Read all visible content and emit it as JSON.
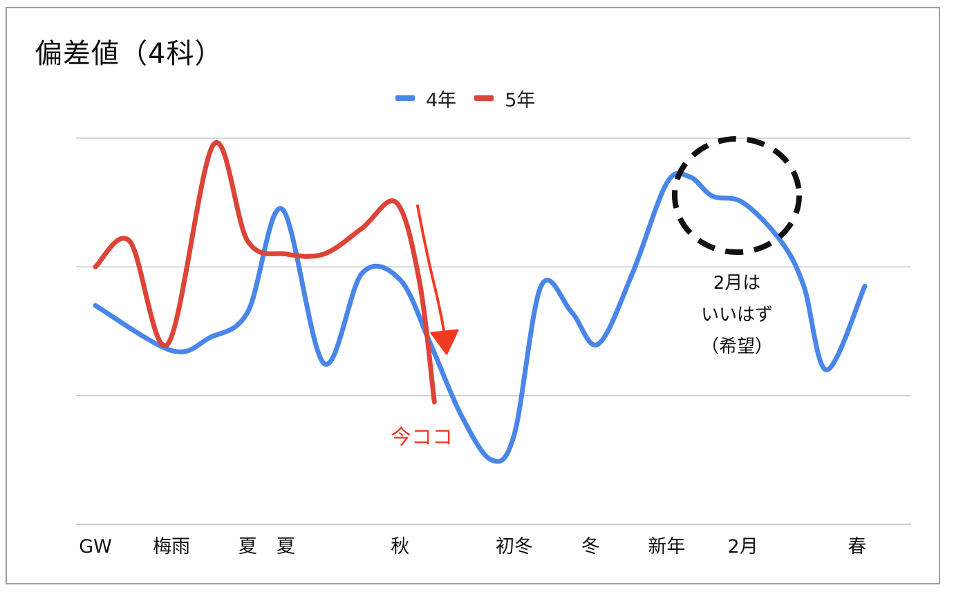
{
  "chart_data": {
    "type": "line",
    "title": "偏差値（4科）",
    "xlabel": "",
    "ylabel": "",
    "ylim": [
      0,
      30
    ],
    "grid": true,
    "legend": "top-center",
    "x_ticks": [
      {
        "x": 0,
        "label": "GW"
      },
      {
        "x": 1,
        "label": "梅雨"
      },
      {
        "x": 2,
        "label": "夏"
      },
      {
        "x": 2.5,
        "label": "夏"
      },
      {
        "x": 4,
        "label": "秋"
      },
      {
        "x": 5.5,
        "label": "初冬"
      },
      {
        "x": 6.5,
        "label": "冬"
      },
      {
        "x": 7.5,
        "label": "新年"
      },
      {
        "x": 8.5,
        "label": "2月"
      },
      {
        "x": 10,
        "label": "春"
      }
    ],
    "xlim": [
      0,
      10.5
    ],
    "series": [
      {
        "name": "4年",
        "color": "#4a86e8",
        "points": [
          [
            0,
            17
          ],
          [
            1,
            13.5
          ],
          [
            1.5,
            14.5
          ],
          [
            2,
            16.5
          ],
          [
            2.45,
            24.5
          ],
          [
            3,
            12.5
          ],
          [
            3.5,
            19.5
          ],
          [
            4,
            19
          ],
          [
            4.4,
            14
          ],
          [
            4.8,
            8.5
          ],
          [
            5.2,
            5
          ],
          [
            5.5,
            7
          ],
          [
            5.85,
            18.5
          ],
          [
            6.25,
            16.5
          ],
          [
            6.6,
            14
          ],
          [
            7.05,
            19.5
          ],
          [
            7.5,
            26.5
          ],
          [
            7.8,
            27
          ],
          [
            8.1,
            25.5
          ],
          [
            8.5,
            25
          ],
          [
            9,
            22
          ],
          [
            9.3,
            18.5
          ],
          [
            9.6,
            12
          ],
          [
            10.1,
            18.5
          ]
        ]
      },
      {
        "name": "5年",
        "color": "#db4437",
        "points": [
          [
            0,
            20
          ],
          [
            0.45,
            22
          ],
          [
            0.95,
            14
          ],
          [
            1.55,
            29.5
          ],
          [
            2,
            22
          ],
          [
            2.5,
            21
          ],
          [
            3,
            21
          ],
          [
            3.5,
            23
          ],
          [
            3.95,
            25
          ],
          [
            4.25,
            19
          ],
          [
            4.45,
            9.5
          ]
        ]
      }
    ],
    "annotations": {
      "now_label": "今ココ",
      "hope_lines": [
        "2月は",
        "いいはず",
        "（希望）"
      ]
    },
    "colors": {
      "grid": "#cccccc",
      "arrow": "#f23a23",
      "now_text": "#f23a23",
      "circle": "#111111"
    }
  }
}
